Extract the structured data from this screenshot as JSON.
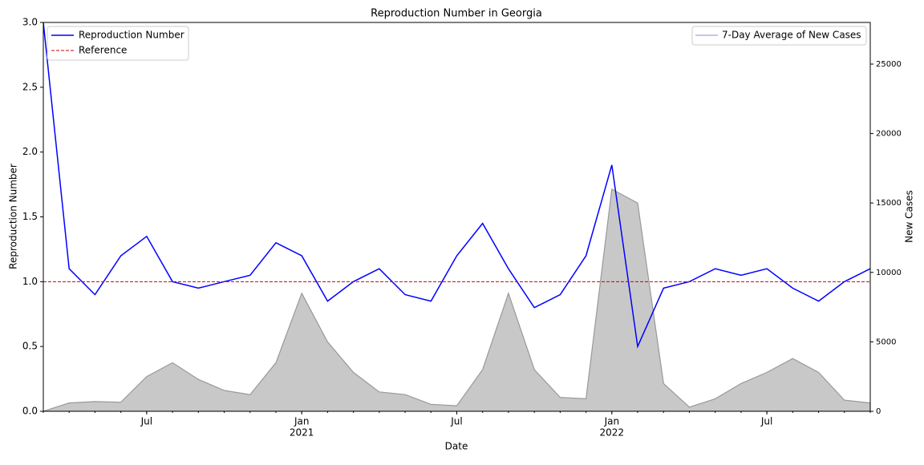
{
  "chart_data": {
    "type": "line",
    "title": "Reproduction Number in Georgia",
    "xlabel": "Date",
    "ylabel": "Reproduction Number",
    "y2label": "New Cases",
    "x": [
      "2020-03",
      "2020-04",
      "2020-05",
      "2020-06",
      "2020-07",
      "2020-08",
      "2020-09",
      "2020-10",
      "2020-11",
      "2020-12",
      "2021-01",
      "2021-02",
      "2021-03",
      "2021-04",
      "2021-05",
      "2021-06",
      "2021-07",
      "2021-08",
      "2021-09",
      "2021-10",
      "2021-11",
      "2021-12",
      "2022-01",
      "2022-02",
      "2022-03",
      "2022-04",
      "2022-05",
      "2022-06",
      "2022-07",
      "2022-08",
      "2022-09",
      "2022-10",
      "2022-11"
    ],
    "xlim": [
      "2020-03",
      "2022-11"
    ],
    "xticks": [
      {
        "value": "2020-07",
        "label": [
          "Jul"
        ]
      },
      {
        "value": "2021-01",
        "label": [
          "Jan",
          "2021"
        ]
      },
      {
        "value": "2021-07",
        "label": [
          "Jul"
        ]
      },
      {
        "value": "2022-01",
        "label": [
          "Jan",
          "2022"
        ]
      },
      {
        "value": "2022-07",
        "label": [
          "Jul"
        ]
      }
    ],
    "ylim": [
      0,
      3
    ],
    "yticks": [
      {
        "value": 0,
        "label": "0.0"
      },
      0.5,
      {
        "value": 1,
        "label": "1.0"
      },
      1.5,
      {
        "value": 2,
        "label": "2.0"
      },
      2.5,
      {
        "value": 3,
        "label": "3.0"
      }
    ],
    "y2lim": [
      0,
      28000
    ],
    "y2ticks": [
      0,
      5000,
      10000,
      15000,
      20000,
      25000
    ],
    "series": [
      {
        "name": "Reproduction Number",
        "color": "#0000ff",
        "values": [
          3.0,
          1.1,
          0.9,
          1.2,
          1.35,
          1.0,
          0.95,
          1.0,
          1.05,
          1.3,
          1.2,
          0.85,
          1.0,
          1.1,
          0.9,
          0.85,
          1.2,
          1.45,
          1.1,
          0.8,
          0.9,
          1.2,
          1.9,
          0.5,
          0.95,
          1.0,
          1.1,
          1.05,
          1.1,
          0.95,
          0.85,
          1.0,
          1.1
        ]
      },
      {
        "name": "7-Day Average of New Cases",
        "color": "#c8c8c8",
        "axis": "y2",
        "values": [
          0,
          600,
          700,
          650,
          2500,
          3500,
          2300,
          1500,
          1200,
          3500,
          8500,
          5000,
          2800,
          1400,
          1200,
          500,
          400,
          3000,
          8500,
          3000,
          1000,
          900,
          16000,
          15000,
          2000,
          300,
          900,
          2000,
          2800,
          3800,
          2800,
          800,
          600
        ]
      }
    ],
    "reference": {
      "name": "Reference",
      "color": "#cc0000",
      "value": 1
    }
  }
}
